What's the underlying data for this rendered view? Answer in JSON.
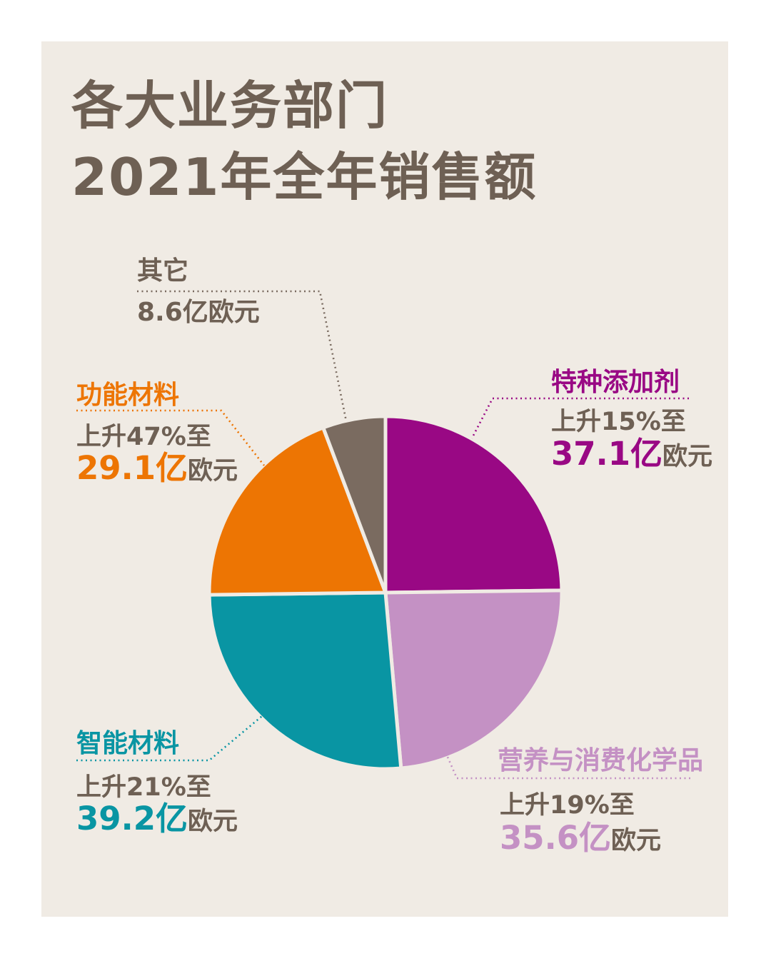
{
  "title": {
    "line1": "各大业务部门",
    "line2": "2021年全年销售额"
  },
  "colors": {
    "page_bg": "#ffffff",
    "card_bg": "#f0ebe4",
    "text": "#6e6054",
    "magenta": "#990884",
    "light_purple": "#c491c4",
    "teal": "#0995a3",
    "orange": "#ed7503",
    "gray": "#7a6b60"
  },
  "chart_data": {
    "type": "pie",
    "title": "各大业务部门 2021年全年销售额",
    "unit": "亿欧元",
    "start_angle_deg": 0,
    "clockwise": true,
    "legend_position": "outside-callouts",
    "slices": [
      {
        "key": "specialty",
        "label": "特种添加剂",
        "value": 37.1,
        "change_pct": 15,
        "color": "#990884"
      },
      {
        "key": "nutrition",
        "label": "营养与消费化学品",
        "value": 35.6,
        "change_pct": 19,
        "color": "#c491c4"
      },
      {
        "key": "smart",
        "label": "智能材料",
        "value": 39.2,
        "change_pct": 21,
        "color": "#0995a3"
      },
      {
        "key": "functional",
        "label": "功能材料",
        "value": 29.1,
        "change_pct": 47,
        "color": "#ed7503"
      },
      {
        "key": "other",
        "label": "其它",
        "value": 8.6,
        "change_pct": null,
        "color": "#7a6b60"
      }
    ]
  },
  "callouts": {
    "other": {
      "label": "其它",
      "value": "8.6亿欧元"
    },
    "specialty": {
      "label": "特种添加剂",
      "change": "上升15%至",
      "amount": "37.1亿",
      "unit": "欧元"
    },
    "functional": {
      "label": "功能材料",
      "change": "上升47%至",
      "amount": "29.1亿",
      "unit": "欧元"
    },
    "smart": {
      "label": "智能材料",
      "change": "上升21%至",
      "amount": "39.2亿",
      "unit": "欧元"
    },
    "nutrition": {
      "label": "营养与消费化学品",
      "change": "上升19%至",
      "amount": "35.6亿",
      "unit": "欧元"
    }
  }
}
